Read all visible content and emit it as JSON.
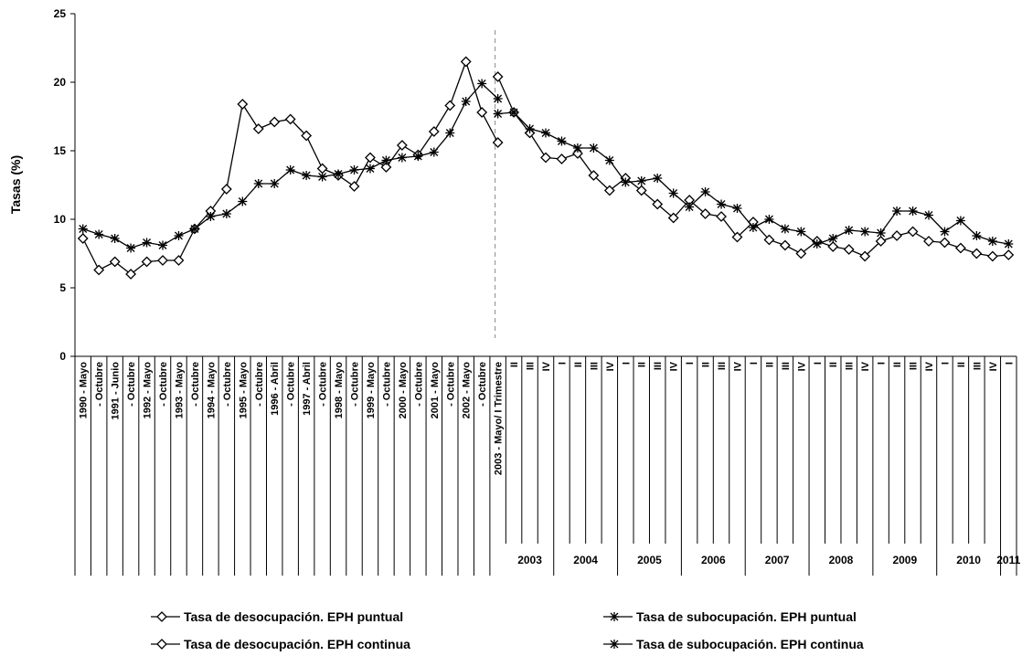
{
  "chart_data": {
    "type": "line",
    "y_label": "Tasas (%)",
    "ylim": [
      0,
      25
    ],
    "yticks": [
      0,
      5,
      10,
      15,
      20,
      25
    ],
    "categories": [
      "1990 - Mayo",
      "- Octubre",
      "1991 - Junio",
      "- Octubre",
      "1992 - Mayo",
      "- Octubre",
      "1993 - Mayo",
      "- Octubre",
      "1994 - Mayo",
      "- Octubre",
      "1995 - Mayo",
      "- Octubre",
      "1996 - Abril",
      "- Octubre",
      "1997 - Abril",
      "- Octubre",
      "1998 - Mayo",
      "- Octubre",
      "1999 - Mayo",
      "- Octubre",
      "2000 - Mayo",
      "- Octubre",
      "2001 - Mayo",
      "- Octubre",
      "2002 - Mayo",
      "- Octubre",
      "2003 - Mayo/ I Trimestre",
      "II",
      "III",
      "IV",
      "I",
      "II",
      "III",
      "IV",
      "I",
      "II",
      "III",
      "IV",
      "I",
      "II",
      "III",
      "IV",
      "I",
      "II",
      "III",
      "IV",
      "I",
      "II",
      "III",
      "IV",
      "I",
      "II",
      "III",
      "IV",
      "I",
      "II",
      "III",
      "IV",
      "I"
    ],
    "year_groups": [
      "2003",
      "2004",
      "2005",
      "2006",
      "2007",
      "2008",
      "2009",
      "2010",
      "2011"
    ],
    "series": [
      {
        "name": "Tasa de desocupación. EPH puntual",
        "color": "#000000",
        "marker": "diamond",
        "values": [
          8.6,
          6.3,
          6.9,
          6.0,
          6.9,
          7.0,
          7.0,
          9.3,
          10.6,
          12.2,
          18.4,
          16.6,
          17.1,
          17.3,
          16.1,
          13.7,
          13.2,
          12.4,
          14.5,
          13.8,
          15.4,
          14.7,
          16.4,
          18.3,
          21.5,
          17.8,
          15.6,
          null,
          null,
          null,
          null,
          null,
          null,
          null,
          null,
          null,
          null,
          null,
          null,
          null,
          null,
          null,
          null,
          null,
          null,
          null,
          null,
          null,
          null,
          null,
          null,
          null,
          null,
          null,
          null,
          null,
          null,
          null,
          null
        ]
      },
      {
        "name": "Tasa de subocupación. EPH puntual",
        "color": "#000000",
        "marker": "star",
        "values": [
          9.3,
          8.9,
          8.6,
          7.9,
          8.3,
          8.1,
          8.8,
          9.3,
          10.2,
          10.4,
          11.3,
          12.6,
          12.6,
          13.6,
          13.2,
          13.1,
          13.3,
          13.6,
          13.7,
          14.3,
          14.5,
          14.6,
          14.9,
          16.3,
          18.6,
          19.9,
          18.8,
          null,
          null,
          null,
          null,
          null,
          null,
          null,
          null,
          null,
          null,
          null,
          null,
          null,
          null,
          null,
          null,
          null,
          null,
          null,
          null,
          null,
          null,
          null,
          null,
          null,
          null,
          null,
          null,
          null,
          null,
          null,
          null
        ]
      },
      {
        "name": "Tasa de desocupación. EPH continua",
        "color": "#000000",
        "marker": "diamond",
        "values": [
          null,
          null,
          null,
          null,
          null,
          null,
          null,
          null,
          null,
          null,
          null,
          null,
          null,
          null,
          null,
          null,
          null,
          null,
          null,
          null,
          null,
          null,
          null,
          null,
          null,
          null,
          20.4,
          17.8,
          16.3,
          14.5,
          14.4,
          14.8,
          13.2,
          12.1,
          13.0,
          12.1,
          11.1,
          10.1,
          11.4,
          10.4,
          10.2,
          8.7,
          9.8,
          8.5,
          8.1,
          7.5,
          8.4,
          8.0,
          7.8,
          7.3,
          8.4,
          8.8,
          9.1,
          8.4,
          8.3,
          7.9,
          7.5,
          7.3,
          7.4
        ]
      },
      {
        "name": "Tasa de subocupación. EPH continua",
        "color": "#000000",
        "marker": "star",
        "values": [
          null,
          null,
          null,
          null,
          null,
          null,
          null,
          null,
          null,
          null,
          null,
          null,
          null,
          null,
          null,
          null,
          null,
          null,
          null,
          null,
          null,
          null,
          null,
          null,
          null,
          null,
          17.7,
          17.8,
          16.6,
          16.3,
          15.7,
          15.2,
          15.2,
          14.3,
          12.7,
          12.8,
          13.0,
          11.9,
          10.9,
          12.0,
          11.1,
          10.8,
          9.4,
          10.0,
          9.3,
          9.1,
          8.2,
          8.6,
          9.2,
          9.1,
          9.0,
          10.6,
          10.6,
          10.3,
          9.1,
          9.9,
          8.8,
          8.4,
          8.2
        ]
      }
    ],
    "legend": "bottom",
    "grid": false
  }
}
